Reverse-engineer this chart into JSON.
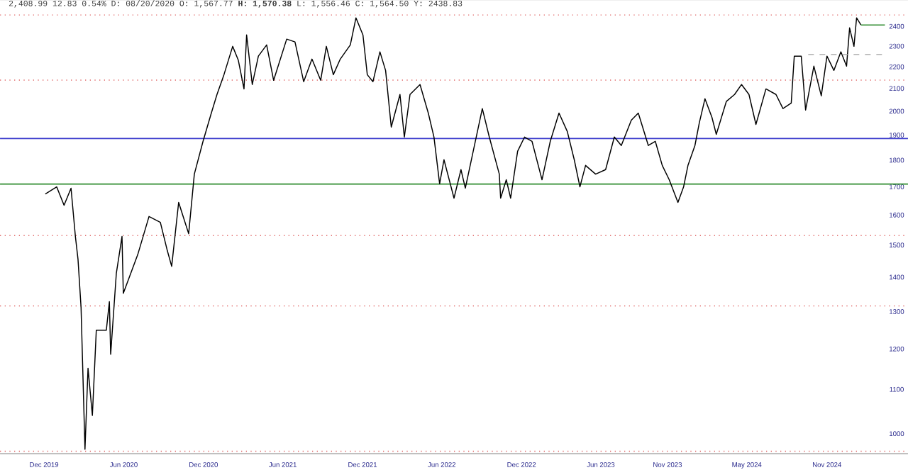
{
  "chart_data": {
    "type": "line",
    "title": "2,408.99 12.83 0.54% D: 08/20/2020 O: 1,567.77 **H: 1,570.38** L: 1,556.46 C: 1,564.50 Y: 2438.83",
    "log": "y",
    "marker": "none",
    "line_style": "solid",
    "xlim": [
      "2019-08-22",
      "2025-05-06"
    ],
    "xticks": [
      {
        "value": "2019-12-01",
        "label": "Dec 2019"
      },
      {
        "value": "2020-06-01",
        "label": "Jun 2020"
      },
      {
        "value": "2020-12-01",
        "label": "Dec 2020"
      },
      {
        "value": "2021-06-01",
        "label": "Jun 2021"
      },
      {
        "value": "2021-12-01",
        "label": "Dec 2021"
      },
      {
        "value": "2022-06-01",
        "label": "Jun 2022"
      },
      {
        "value": "2022-12-01",
        "label": "Dec 2022"
      },
      {
        "value": "2023-06-01",
        "label": "Jun 2023"
      },
      {
        "value": "2023-11-01",
        "label": "Nov 2023"
      },
      {
        "value": "2024-05-01",
        "label": "May 2024"
      },
      {
        "value": "2024-11-01",
        "label": "Nov 2024"
      }
    ],
    "ylim": [
      958,
      2540
    ],
    "yticks": [
      1000,
      1100,
      1200,
      1300,
      1400,
      1500,
      1600,
      1700,
      1800,
      1900,
      2000,
      2100,
      2200,
      2300,
      2400
    ],
    "ref_lines": [
      {
        "axis": "y",
        "value": 2459,
        "color": "#e06a6a",
        "line_style": "dotted"
      },
      {
        "axis": "y",
        "value": 2138,
        "color": "#e06a6a",
        "line_style": "dotted"
      },
      {
        "axis": "y",
        "value": 1886,
        "color": "#3a3acc",
        "line_style": "solid"
      },
      {
        "axis": "y",
        "value": 1710,
        "color": "#2e8b2e",
        "line_style": "solid"
      },
      {
        "axis": "y",
        "value": 1531,
        "color": "#e06a6a",
        "line_style": "dotted"
      },
      {
        "axis": "y",
        "value": 1316,
        "color": "#e06a6a",
        "line_style": "dotted"
      },
      {
        "axis": "y",
        "value": 963,
        "color": "#e06a6a",
        "line_style": "dotted"
      }
    ],
    "series": [
      {
        "color": "#000000",
        "x": [
          "2019-12-04",
          "2019-12-30",
          "2020-01-16",
          "2020-02-01",
          "2020-02-11",
          "2020-02-17",
          "2020-02-24",
          "2020-03-04",
          "2020-03-11",
          "2020-03-21",
          "2020-03-30",
          "2020-04-22",
          "2020-04-29",
          "2020-05-02",
          "2020-05-15",
          "2020-05-28",
          "2020-05-31",
          "2020-07-03",
          "2020-07-29",
          "2020-08-24",
          "2020-09-09",
          "2020-09-19",
          "2020-10-05",
          "2020-10-28",
          "2020-11-10",
          "2020-11-30",
          "2020-12-19",
          "2021-01-01",
          "2021-01-17",
          "2021-02-06",
          "2021-02-19",
          "2021-03-04",
          "2021-03-10",
          "2021-03-23",
          "2021-04-06",
          "2021-04-25",
          "2021-05-11",
          "2021-06-10",
          "2021-06-29",
          "2021-07-19",
          "2021-08-07",
          "2021-08-27",
          "2021-09-09",
          "2021-09-25",
          "2021-10-11",
          "2021-11-03",
          "2021-11-16",
          "2021-12-02",
          "2021-12-12",
          "2021-12-25",
          "2022-01-10",
          "2022-01-23",
          "2022-02-05",
          "2022-02-25",
          "2022-03-07",
          "2022-03-20",
          "2022-04-12",
          "2022-05-01",
          "2022-05-14",
          "2022-05-27",
          "2022-06-06",
          "2022-06-29",
          "2022-07-15",
          "2022-07-25",
          "2022-08-10",
          "2022-09-02",
          "2022-09-18",
          "2022-10-11",
          "2022-10-14",
          "2022-10-27",
          "2022-11-06",
          "2022-11-22",
          "2022-12-08",
          "2022-12-25",
          "2023-01-17",
          "2023-02-05",
          "2023-02-25",
          "2023-03-16",
          "2023-04-01",
          "2023-04-14",
          "2023-04-27",
          "2023-05-20",
          "2023-06-12",
          "2023-07-02",
          "2023-07-18",
          "2023-08-10",
          "2023-08-26",
          "2023-09-18",
          "2023-10-04",
          "2023-10-20",
          "2023-11-05",
          "2023-11-25",
          "2023-12-08",
          "2023-12-18",
          "2024-01-03",
          "2024-01-13",
          "2024-01-26",
          "2024-02-11",
          "2024-02-21",
          "2024-03-15",
          "2024-04-03",
          "2024-04-19",
          "2024-05-06",
          "2024-05-22",
          "2024-06-14",
          "2024-07-07",
          "2024-07-23",
          "2024-08-11",
          "2024-08-18",
          "2024-09-03",
          "2024-09-13",
          "2024-10-02",
          "2024-10-19",
          "2024-11-01",
          "2024-11-17",
          "2024-12-03",
          "2024-12-16",
          "2024-12-23",
          "2025-01-02",
          "2025-01-08",
          "2025-01-18"
        ],
        "values": [
          1674,
          1700,
          1634,
          1695,
          1528,
          1455,
          1312,
          967,
          1151,
          1040,
          1249,
          1249,
          1328,
          1186,
          1412,
          1528,
          1352,
          1469,
          1595,
          1575,
          1482,
          1433,
          1644,
          1537,
          1747,
          1875,
          1992,
          2073,
          2163,
          2299,
          2231,
          2098,
          2356,
          2118,
          2251,
          2306,
          2137,
          2335,
          2321,
          2131,
          2237,
          2137,
          2299,
          2163,
          2237,
          2306,
          2444,
          2356,
          2163,
          2131,
          2272,
          2183,
          1933,
          2073,
          1892,
          2073,
          2118,
          1992,
          1892,
          1711,
          1802,
          1659,
          1764,
          1695,
          1818,
          2011,
          1892,
          1747,
          1659,
          1726,
          1659,
          1835,
          1892,
          1875,
          1726,
          1875,
          1992,
          1915,
          1802,
          1700,
          1780,
          1747,
          1764,
          1892,
          1858,
          1962,
          1992,
          1858,
          1875,
          1780,
          1726,
          1644,
          1700,
          1780,
          1858,
          1950,
          2054,
          1974,
          1903,
          2042,
          2073,
          2118,
          2073,
          1944,
          2098,
          2073,
          2011,
          2035,
          2251,
          2251,
          2005,
          2203,
          2067,
          2251,
          2183,
          2272,
          2203,
          2392,
          2299,
          2444,
          2407
        ]
      },
      {
        "color": "#2e8b2e",
        "x": [
          "2025-01-18",
          "2025-03-14"
        ],
        "values": [
          2407,
          2407
        ]
      },
      {
        "color": "#a0a0a0",
        "line_style": "dashed",
        "x": [
          "2024-09-19",
          "2025-03-14"
        ],
        "values": [
          2259,
          2259
        ]
      }
    ]
  }
}
